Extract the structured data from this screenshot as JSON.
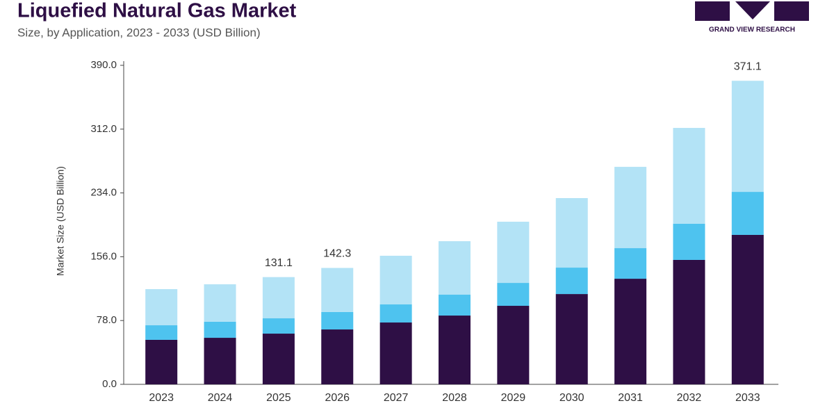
{
  "brand": "GRAND VIEW RESEARCH",
  "chart_data": {
    "type": "stacked-bar",
    "title": "Liquefied Natural Gas Market",
    "subtitle": "Size, by Application, 2023 - 2033 (USD Billion)",
    "y_label": "Market Size (USD Billion)",
    "categories": [
      "2023",
      "2024",
      "2025",
      "2026",
      "2027",
      "2028",
      "2029",
      "2030",
      "2031",
      "2032",
      "2033"
    ],
    "series": [
      {
        "color": "#2e0f45",
        "values": [
          54.4,
          56.9,
          62.0,
          67.1,
          75.6,
          84.1,
          96.0,
          110.4,
          129.1,
          152.1,
          182.7
        ]
      },
      {
        "color": "#4ec3ef",
        "values": [
          17.8,
          19.6,
          18.7,
          21.3,
          22.1,
          25.5,
          28.0,
          32.3,
          37.4,
          44.2,
          52.6
        ]
      },
      {
        "color": "#b3e3f6",
        "values": [
          44.2,
          45.8,
          50.4,
          53.9,
          59.5,
          65.4,
          74.8,
          85.0,
          99.4,
          117.2,
          135.8
        ]
      }
    ],
    "totals": [
      null,
      null,
      131.1,
      142.3,
      null,
      null,
      null,
      null,
      null,
      null,
      371.1
    ],
    "ylim": [
      0,
      390
    ],
    "yticks": [
      {
        "value": 0,
        "label": "0.0"
      },
      {
        "value": 78,
        "label": "78.0"
      },
      {
        "value": 156,
        "label": "156.0"
      },
      {
        "value": 234,
        "label": "234.0"
      },
      {
        "value": 312,
        "label": "312.0"
      },
      {
        "value": 390,
        "label": "390.0"
      }
    ],
    "grid": false
  }
}
